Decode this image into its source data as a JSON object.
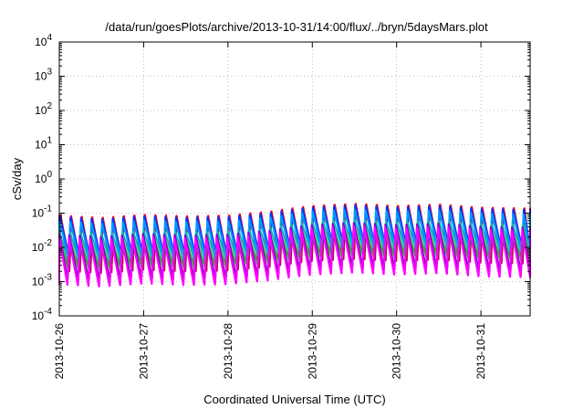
{
  "chart_data": {
    "type": "line",
    "title": "/data/run/goesPlots/archive/2013-10-31/14:00/flux/../bryn/5daysMars.plot",
    "xlabel": "Coordinated Universal Time (UTC)",
    "ylabel": "cSv/day",
    "yscale": "log",
    "ylim": [
      0.0001,
      10000
    ],
    "xlim": [
      "2013-10-26T00:00",
      "2013-10-31T14:00"
    ],
    "grid": true,
    "x_ticks": [
      "2013-10-26",
      "2013-10-27",
      "2013-10-28",
      "2013-10-29",
      "2013-10-30",
      "2013-10-31"
    ],
    "y_ticks": [
      {
        "base": "10",
        "exp": "-4",
        "value": 0.0001
      },
      {
        "base": "10",
        "exp": "-3",
        "value": 0.001
      },
      {
        "base": "10",
        "exp": "-2",
        "value": 0.01
      },
      {
        "base": "10",
        "exp": "-1",
        "value": 0.1
      },
      {
        "base": "10",
        "exp": "0",
        "value": 1
      },
      {
        "base": "10",
        "exp": "1",
        "value": 10
      },
      {
        "base": "10",
        "exp": "2",
        "value": 100
      },
      {
        "base": "10",
        "exp": "3",
        "value": 1000
      },
      {
        "base": "10",
        "exp": "4",
        "value": 10000
      }
    ],
    "pattern": "sawtooth, one cycle per ~3 hours (Mars-orbit periodic dose)",
    "cycles_per_day": 8,
    "series": [
      {
        "color": "#ff0000",
        "peak_base": 0.09,
        "trough_base": 0.0035
      },
      {
        "color": "#d00060",
        "peak_base": 0.085,
        "trough_base": 0.002
      },
      {
        "color": "#0033ff",
        "peak_base": 0.08,
        "trough_base": 0.006
      },
      {
        "color": "#0099ff",
        "peak_base": 0.06,
        "trough_base": 0.005
      },
      {
        "color": "#00bbbb",
        "peak_base": 0.03,
        "trough_base": 0.004
      },
      {
        "color": "#33aa33",
        "peak_base": 0.02,
        "trough_base": 0.0025
      },
      {
        "color": "#8800cc",
        "peak_base": 0.025,
        "trough_base": 0.0012
      },
      {
        "color": "#ff00ff",
        "peak_base": 0.02,
        "trough_base": 0.0008
      }
    ],
    "envelope": [
      {
        "day": 0.0,
        "factor": 1.0
      },
      {
        "day": 0.5,
        "factor": 0.85
      },
      {
        "day": 1.0,
        "factor": 1.05
      },
      {
        "day": 1.5,
        "factor": 0.95
      },
      {
        "day": 2.0,
        "factor": 1.0
      },
      {
        "day": 2.5,
        "factor": 1.3
      },
      {
        "day": 3.0,
        "factor": 1.9
      },
      {
        "day": 3.5,
        "factor": 2.2
      },
      {
        "day": 4.0,
        "factor": 1.9
      },
      {
        "day": 4.5,
        "factor": 2.1
      },
      {
        "day": 5.0,
        "factor": 1.7
      },
      {
        "day": 5.6,
        "factor": 1.6
      }
    ]
  }
}
